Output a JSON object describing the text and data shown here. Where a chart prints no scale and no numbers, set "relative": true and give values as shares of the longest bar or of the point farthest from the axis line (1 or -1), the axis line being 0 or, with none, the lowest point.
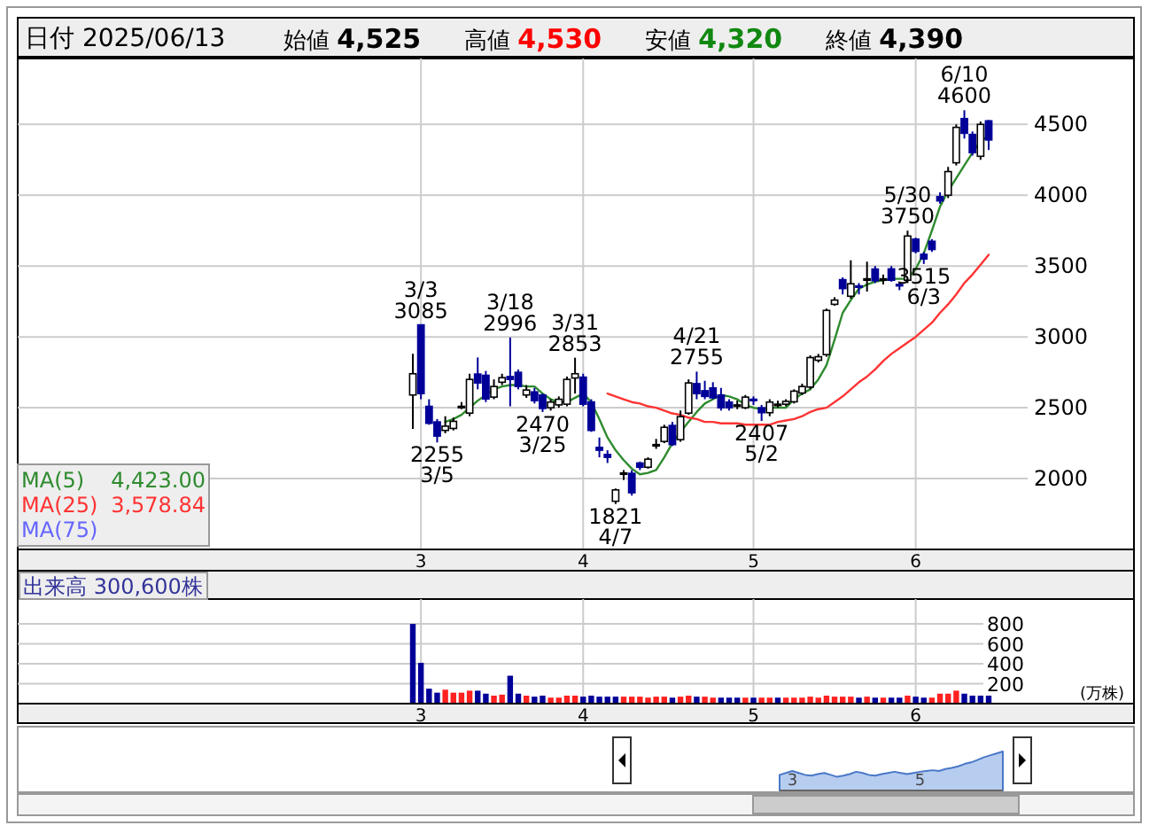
{
  "chart_data": [
    {
      "type": "candlestick",
      "categories": [
        null,
        "3",
        null,
        null,
        null,
        null,
        null,
        null,
        null,
        null,
        null,
        null,
        null,
        null,
        null,
        null,
        null,
        null,
        null,
        null,
        null,
        "4",
        null,
        null,
        null,
        null,
        null,
        null,
        null,
        null,
        null,
        null,
        null,
        null,
        null,
        null,
        null,
        null,
        null,
        null,
        null,
        null,
        "5",
        null,
        null,
        null,
        null,
        null,
        null,
        null,
        null,
        null,
        null,
        null,
        null,
        null,
        null,
        null,
        null,
        null,
        null,
        null,
        "6",
        null,
        null,
        null,
        null,
        null,
        null,
        null,
        null,
        null
      ],
      "series": [
        {
          "type": "candlestick",
          "colors": [
            "#ffffff",
            "#000099",
            "#000099",
            "#000099",
            "#ffffff",
            "#ffffff",
            "#ffffff",
            "#ffffff",
            "#000099",
            "#000099",
            "#ffffff",
            "#ffffff",
            "#000099",
            "#000099",
            "#ffffff",
            "#000099",
            "#000099",
            "#ffffff",
            "#ffffff",
            "#ffffff",
            "#ffffff",
            "#000099",
            "#000099",
            "#000099",
            "#000099",
            "#ffffff",
            "#ffffff",
            "#000099",
            "#000099",
            "#ffffff",
            "#ffffff",
            "#ffffff",
            "#000099",
            "#ffffff",
            "#ffffff",
            "#000099",
            "#000099",
            "#000099",
            "#000099",
            "#000099",
            "#ffffff",
            "#ffffff",
            "#000099",
            "#000099",
            "#ffffff",
            "#ffffff",
            "#ffffff",
            "#ffffff",
            "#ffffff",
            "#ffffff",
            "#ffffff",
            "#ffffff",
            "#ffffff",
            "#000099",
            "#ffffff",
            "#000099",
            "#ffffff",
            "#000099",
            "#ffffff",
            "#000099",
            "#000099",
            "#ffffff",
            "#000099",
            "#000099",
            "#000099",
            "#000099",
            "#ffffff",
            "#ffffff",
            "#000099",
            "#000099",
            "#ffffff",
            "#000099"
          ],
          "ohlc": [
            [
              2590,
              2880,
              2350,
              2740
            ],
            [
              3085,
              3085,
              2560,
              2600
            ],
            [
              2510,
              2560,
              2380,
              2390
            ],
            [
              2400,
              2420,
              2255,
              2300
            ],
            [
              2340,
              2440,
              2320,
              2370
            ],
            [
              2354,
              2430,
              2340,
              2404
            ],
            [
              2500,
              2540,
              2490,
              2510
            ],
            [
              2462,
              2740,
              2440,
              2700
            ],
            [
              2738,
              2855,
              2630,
              2675
            ],
            [
              2729,
              2760,
              2540,
              2562
            ],
            [
              2575,
              2700,
              2560,
              2650
            ],
            [
              2680,
              2740,
              2660,
              2712
            ],
            [
              2720,
              2996,
              2510,
              2700
            ],
            [
              2750,
              2770,
              2630,
              2650
            ],
            [
              2590,
              2660,
              2570,
              2625
            ],
            [
              2612,
              2640,
              2530,
              2550
            ],
            [
              2590,
              2600,
              2470,
              2495
            ],
            [
              2500,
              2560,
              2480,
              2540
            ],
            [
              2520,
              2580,
              2500,
              2560
            ],
            [
              2525,
              2720,
              2510,
              2700
            ],
            [
              2710,
              2853,
              2600,
              2740
            ],
            [
              2716,
              2740,
              2510,
              2525
            ],
            [
              2541,
              2560,
              2330,
              2340
            ],
            [
              2220,
              2290,
              2150,
              2200
            ],
            [
              2170,
              2200,
              2110,
              2150
            ],
            [
              1840,
              1930,
              1821,
              1920
            ],
            [
              2030,
              2060,
              1990,
              2040
            ],
            [
              2037,
              2060,
              1880,
              1900
            ],
            [
              2110,
              2120,
              2060,
              2080
            ],
            [
              2080,
              2150,
              2070,
              2137
            ],
            [
              2230,
              2280,
              2210,
              2240
            ],
            [
              2262,
              2380,
              2250,
              2362
            ],
            [
              2375,
              2400,
              2230,
              2240
            ],
            [
              2275,
              2480,
              2260,
              2437
            ],
            [
              2462,
              2700,
              2450,
              2675
            ],
            [
              2670,
              2755,
              2560,
              2600
            ],
            [
              2620,
              2690,
              2560,
              2580
            ],
            [
              2640,
              2680,
              2560,
              2570
            ],
            [
              2590,
              2640,
              2480,
              2500
            ],
            [
              2540,
              2560,
              2480,
              2500
            ],
            [
              2510,
              2550,
              2490,
              2520
            ],
            [
              2500,
              2590,
              2490,
              2575
            ],
            [
              2560,
              2580,
              2520,
              2550
            ],
            [
              2500,
              2520,
              2407,
              2465
            ],
            [
              2465,
              2560,
              2440,
              2540
            ],
            [
              2520,
              2550,
              2500,
              2525
            ],
            [
              2525,
              2560,
              2510,
              2545
            ],
            [
              2542,
              2630,
              2530,
              2617
            ],
            [
              2604,
              2670,
              2590,
              2650
            ],
            [
              2646,
              2870,
              2630,
              2854
            ],
            [
              2835,
              2880,
              2820,
              2860
            ],
            [
              2875,
              3200,
              2860,
              3187
            ],
            [
              3230,
              3280,
              3220,
              3260
            ],
            [
              3404,
              3420,
              3300,
              3341
            ],
            [
              3287,
              3541,
              3270,
              3375
            ],
            [
              3360,
              3380,
              3300,
              3350
            ],
            [
              3400,
              3531,
              3320,
              3410
            ],
            [
              3479,
              3500,
              3380,
              3396
            ],
            [
              3400,
              3440,
              3370,
              3410
            ],
            [
              3480,
              3500,
              3390,
              3400
            ],
            [
              3370,
              3380,
              3330,
              3360
            ],
            [
              3400,
              3750,
              3380,
              3712
            ],
            [
              3690,
              3700,
              3590,
              3604
            ],
            [
              3583,
              3600,
              3515,
              3550
            ],
            [
              3675,
              3690,
              3600,
              3617
            ],
            [
              3990,
              4020,
              3940,
              3960
            ],
            [
              4000,
              4200,
              3980,
              4167
            ],
            [
              4229,
              4500,
              4210,
              4479
            ],
            [
              4541,
              4600,
              4400,
              4437
            ],
            [
              4429,
              4450,
              4280,
              4300
            ],
            [
              4275,
              4520,
              4250,
              4500
            ],
            [
              4525,
              4530,
              4320,
              4390
            ]
          ]
        },
        {
          "type": "line",
          "name": "MA(5)",
          "color": "#2e8b2e",
          "values": [
            null,
            null,
            null,
            null,
            2400,
            2420,
            2450,
            2500,
            2550,
            2590,
            2630,
            2650,
            2660,
            2660,
            2650,
            2650,
            2600,
            2560,
            2540,
            2540,
            2570,
            2600,
            2540,
            2420,
            2290,
            2200,
            2130,
            2070,
            2030,
            2040,
            2060,
            2150,
            2250,
            2330,
            2400,
            2470,
            2530,
            2560,
            2590,
            2580,
            2560,
            2520,
            2500,
            2490,
            2500,
            2500,
            2500,
            2560,
            2600,
            2630,
            2700,
            2800,
            2980,
            3170,
            3260,
            3340,
            3370,
            3390,
            3400,
            3410,
            3410,
            3410,
            3480,
            3590,
            3750,
            3920,
            4030,
            4120,
            4210,
            4300,
            4380,
            4420
          ]
        },
        {
          "type": "line",
          "name": "MA(25)",
          "color": "#ff3333",
          "values": [
            null,
            null,
            null,
            null,
            null,
            null,
            null,
            null,
            null,
            null,
            null,
            null,
            null,
            null,
            null,
            null,
            null,
            null,
            null,
            null,
            null,
            null,
            null,
            null,
            2600,
            2580,
            2560,
            2540,
            2530,
            2510,
            2500,
            2480,
            2460,
            2450,
            2430,
            2420,
            2400,
            2400,
            2390,
            2390,
            2390,
            2380,
            2380,
            2380,
            2380,
            2400,
            2410,
            2420,
            2440,
            2470,
            2490,
            2500,
            2540,
            2580,
            2630,
            2680,
            2720,
            2770,
            2830,
            2880,
            2920,
            2960,
            3000,
            3050,
            3100,
            3170,
            3230,
            3300,
            3380,
            3440,
            3510,
            3580
          ]
        },
        {
          "type": "line",
          "name": "MA(75)",
          "color": "#6666ff",
          "values": [
            null,
            null,
            null,
            null,
            null,
            null,
            null,
            null,
            null,
            null,
            null,
            null,
            null,
            null,
            null,
            null,
            null,
            null,
            null,
            null,
            null,
            null,
            null,
            null,
            null,
            null,
            null,
            null,
            null,
            null,
            null,
            null,
            null,
            null,
            null,
            null,
            null,
            null,
            null,
            null,
            null,
            null,
            null,
            null,
            null,
            null,
            null,
            null,
            null,
            null,
            null,
            null,
            null,
            null,
            null,
            null,
            null,
            null,
            null,
            null,
            null,
            null,
            null,
            null,
            null,
            null,
            null,
            null,
            null,
            null,
            null,
            null
          ]
        }
      ],
      "ylim": [
        1500,
        4940
      ],
      "yticks": [
        2000,
        2500,
        3000,
        3500,
        4000,
        4500
      ],
      "grid": true,
      "legend": "bottom left",
      "annotations": [
        "日付 2025/06/13",
        "始値 4,525",
        "高値 4,530",
        "安値 4,320",
        "終値 4,390",
        "4,423.00",
        "3,578.84",
        {
          "text": "3/3 3085",
          "y": 3085
        },
        {
          "text": "2255 3/5",
          "y": 2255
        },
        {
          "text": "3/18 2996",
          "y": 2996
        },
        {
          "text": "2470 3/25",
          "y": 2470
        },
        {
          "text": "3/31 2853",
          "y": 2853
        },
        {
          "text": "1821 4/7",
          "y": 1821
        },
        {
          "text": "4/21 2755",
          "y": 2755
        },
        {
          "text": "2407 5/2",
          "y": 2407
        },
        {
          "text": "5/30 3750",
          "y": 3750
        },
        {
          "text": "3515 6/3",
          "y": 3515
        },
        {
          "text": "6/10 4600",
          "y": 4600
        }
      ]
    },
    {
      "type": "bar",
      "ylabel": "(万株)",
      "annotations": [
        "出来高 300,600株"
      ],
      "categories": [
        null,
        "3",
        null,
        null,
        null,
        null,
        null,
        null,
        null,
        null,
        null,
        null,
        null,
        null,
        null,
        null,
        null,
        null,
        null,
        null,
        null,
        "4",
        null,
        null,
        null,
        null,
        null,
        null,
        null,
        null,
        null,
        null,
        null,
        null,
        null,
        null,
        null,
        null,
        null,
        null,
        null,
        null,
        "5",
        null,
        null,
        null,
        null,
        null,
        null,
        null,
        null,
        null,
        null,
        null,
        null,
        null,
        null,
        null,
        null,
        null,
        null,
        null,
        "6",
        null,
        null,
        null,
        null,
        null,
        null,
        null,
        null,
        null
      ],
      "values": [
        800,
        410,
        150,
        110,
        140,
        110,
        110,
        130,
        130,
        100,
        80,
        90,
        280,
        100,
        80,
        70,
        80,
        60,
        60,
        80,
        80,
        70,
        80,
        70,
        70,
        70,
        70,
        70,
        70,
        60,
        70,
        70,
        60,
        70,
        80,
        70,
        70,
        60,
        60,
        60,
        60,
        60,
        60,
        60,
        60,
        60,
        60,
        60,
        60,
        70,
        60,
        80,
        70,
        70,
        70,
        60,
        70,
        60,
        60,
        60,
        60,
        80,
        70,
        60,
        60,
        100,
        100,
        130,
        100,
        80,
        80,
        80
      ],
      "colors": [
        "#000099",
        "#000099",
        "#000099",
        "#000099",
        "#ff2020",
        "#ff2020",
        "#ff2020",
        "#ff2020",
        "#000099",
        "#000099",
        "#ff2020",
        "#ff2020",
        "#000099",
        "#000099",
        "#ff2020",
        "#000099",
        "#000099",
        "#ff2020",
        "#ff2020",
        "#ff2020",
        "#ff2020",
        "#000099",
        "#000099",
        "#000099",
        "#000099",
        "#000099",
        "#ff2020",
        "#ff2020",
        "#ff2020",
        "#ff2020",
        "#ff2020",
        "#ff2020",
        "#000099",
        "#ff2020",
        "#ff2020",
        "#000099",
        "#ff2020",
        "#ff2020",
        "#000099",
        "#000099",
        "#000099",
        "#ff2020",
        "#000099",
        "#ff2020",
        "#ff2020",
        "#000099",
        "#ff2020",
        "#ff2020",
        "#ff2020",
        "#ff2020",
        "#ff2020",
        "#ff2020",
        "#ff2020",
        "#ff2020",
        "#ff2020",
        "#000099",
        "#ff2020",
        "#000099",
        "#ff2020",
        "#000099",
        "#000099",
        "#ff2020",
        "#000099",
        "#000099",
        "#ff2020",
        "#ff2020",
        "#ff2020",
        "#ff2020",
        "#000099",
        "#000099",
        "#000099",
        "#000099"
      ],
      "ylim": [
        0,
        1050
      ],
      "yticks": [
        200,
        400,
        600,
        800
      ],
      "grid": true
    },
    {
      "type": "area",
      "relative": true,
      "color": "#4a78c8",
      "categories": [
        null,
        null,
        "3",
        null,
        null,
        null,
        null,
        null,
        null,
        null,
        null,
        null,
        null,
        null,
        null,
        null,
        null,
        null,
        null,
        null,
        null,
        null,
        "5",
        null,
        null,
        null,
        null,
        null,
        null,
        null,
        null,
        null,
        null,
        null,
        null,
        null
      ],
      "values": [
        0.4,
        0.45,
        0.5,
        0.45,
        0.4,
        0.38,
        0.42,
        0.45,
        0.4,
        0.35,
        0.38,
        0.42,
        0.48,
        0.45,
        0.4,
        0.38,
        0.42,
        0.45,
        0.48,
        0.45,
        0.42,
        0.45,
        0.48,
        0.5,
        0.52,
        0.5,
        0.55,
        0.58,
        0.62,
        0.68,
        0.72,
        0.78,
        0.85,
        0.9,
        0.95,
        1
      ]
    }
  ]
}
